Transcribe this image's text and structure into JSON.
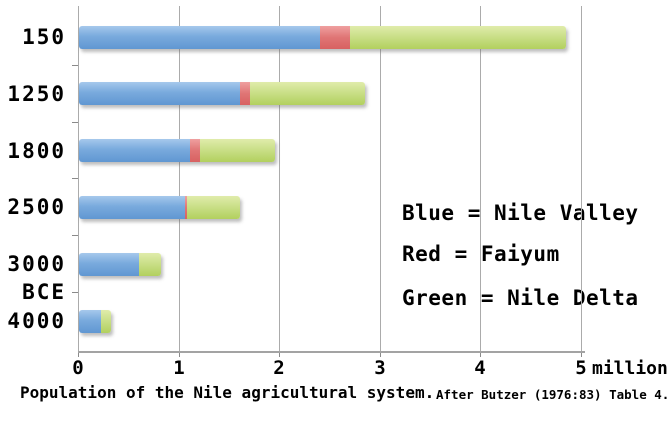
{
  "chart_data": {
    "type": "bar",
    "orientation": "horizontal",
    "stacked": true,
    "title": "Population of the Nile agricultural system.",
    "source_note": "After Butzer (1976:83) Table 4.",
    "categories": [
      "150",
      "1250",
      "1800",
      "2500",
      "3000",
      "4000"
    ],
    "y_axis_era_label": "BCE",
    "series": [
      {
        "name": "Nile Valley",
        "color_label": "Blue",
        "color": "#6FA2D9",
        "values": [
          2.4,
          1.6,
          1.1,
          1.05,
          0.6,
          0.22
        ]
      },
      {
        "name": "Faiyum",
        "color_label": "Red",
        "color": "#DD6A6A",
        "values": [
          0.3,
          0.1,
          0.1,
          0.02,
          0.0,
          0.0
        ]
      },
      {
        "name": "Nile Delta",
        "color_label": "Green",
        "color": "#C3DC7A",
        "values": [
          2.15,
          1.15,
          0.75,
          0.53,
          0.22,
          0.1
        ]
      }
    ],
    "totals": [
      4.85,
      2.85,
      1.95,
      1.6,
      0.82,
      0.32
    ],
    "x_ticks": [
      "0",
      "1",
      "2",
      "3",
      "4",
      "5"
    ],
    "x_unit": "million",
    "xlim": [
      0,
      5
    ],
    "grid": "vertical",
    "legend_position": "inside-right"
  },
  "legend": {
    "lines": [
      "Blue = Nile Valley",
      "Red = Faiyum",
      "Green = Nile Delta"
    ]
  },
  "caption": {
    "main": "Population of the Nile agricultural system.",
    "source": "After Butzer (1976:83) Table 4."
  },
  "colors": {
    "blue": "#6FA2D9",
    "red": "#DD6A6A",
    "green": "#C3DC7A",
    "grid": "#ABABAB",
    "axis": "#A3A3A3",
    "text": "#000000"
  }
}
